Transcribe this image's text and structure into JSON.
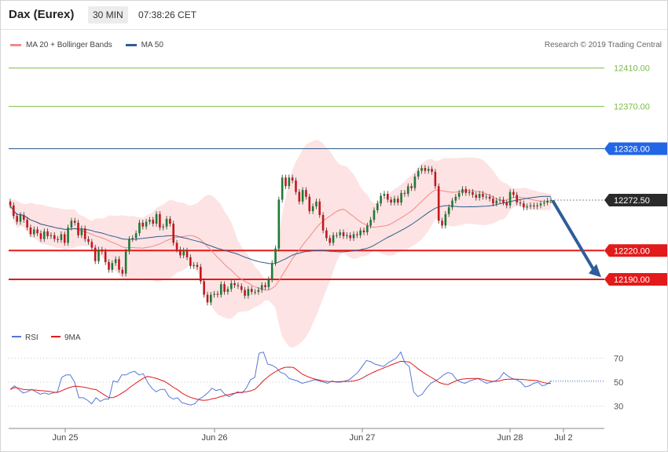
{
  "header": {
    "instrument": "Dax (Eurex)",
    "period": "30 MIN",
    "time": "07:38:26 CET"
  },
  "legend": [
    {
      "label": "MA 20 + Bollinger Bands",
      "color": "#f08a8a"
    },
    {
      "label": "MA 50",
      "color": "#2e5d8f"
    }
  ],
  "credit": "Research © 2019 Trading Central",
  "chart_data": [
    {
      "type": "candlestick",
      "x_ticks": [
        "Jun 25",
        "Jun 26",
        "Jun 27",
        "Jun 28",
        "Jul 2"
      ],
      "ylim": [
        12141,
        12431
      ],
      "price_levels": [
        {
          "value": 12410.0,
          "label": "12410.00",
          "kind": "target",
          "color": "#7dbb45"
        },
        {
          "value": 12370.0,
          "label": "12370.00",
          "kind": "target",
          "color": "#7dbb45"
        },
        {
          "value": 12326.0,
          "label": "12326.00",
          "kind": "pivot",
          "color": "#2f5a86",
          "badge": "#2266e6"
        },
        {
          "value": 12272.5,
          "label": "12272.50",
          "kind": "last",
          "color": "#888888",
          "badge": "#2a2a2a"
        },
        {
          "value": 12220.0,
          "label": "12220.00",
          "kind": "support",
          "color": "#e21a1a",
          "badge": "#e21a1a"
        },
        {
          "value": 12190.0,
          "label": "12190.00",
          "kind": "support",
          "color": "#e21a1a",
          "badge": "#e21a1a"
        }
      ],
      "close": [
        12267,
        12256,
        12250,
        12257,
        12252,
        12244,
        12237,
        12242,
        12238,
        12232,
        12240,
        12235,
        12236,
        12232,
        12231,
        12237,
        12228,
        12244,
        12251,
        12249,
        12236,
        12243,
        12232,
        12229,
        12223,
        12209,
        12221,
        12219,
        12208,
        12200,
        12207,
        12211,
        12200,
        12196,
        12219,
        12232,
        12233,
        12238,
        12249,
        12245,
        12250,
        12252,
        12248,
        12258,
        12244,
        12245,
        12253,
        12248,
        12228,
        12221,
        12215,
        12220,
        12213,
        12204,
        12205,
        12203,
        12188,
        12174,
        12166,
        12174,
        12175,
        12174,
        12185,
        12177,
        12180,
        12186,
        12184,
        12183,
        12179,
        12173,
        12180,
        12177,
        12177,
        12179,
        12184,
        12182,
        12190,
        12207,
        12222,
        12273,
        12296,
        12287,
        12296,
        12293,
        12281,
        12271,
        12283,
        12276,
        12261,
        12266,
        12271,
        12257,
        12241,
        12233,
        12228,
        12236,
        12236,
        12239,
        12235,
        12236,
        12233,
        12237,
        12236,
        12241,
        12239,
        12246,
        12252,
        12262,
        12269,
        12277,
        12279,
        12273,
        12270,
        12274,
        12270,
        12280,
        12279,
        12287,
        12285,
        12297,
        12303,
        12306,
        12303,
        12305,
        12302,
        12287,
        12251,
        12246,
        12258,
        12265,
        12272,
        12276,
        12280,
        12284,
        12280,
        12281,
        12278,
        12275,
        12279,
        12276,
        12276,
        12274,
        12269,
        12272,
        12273,
        12270,
        12267,
        12281,
        12278,
        12270,
        12269,
        12265,
        12266,
        12267,
        12266,
        12267,
        12269,
        12270,
        12272,
        12272.5
      ],
      "rsi": [
        44,
        47,
        44,
        41,
        42,
        44,
        42,
        40,
        41,
        40,
        41,
        42,
        54,
        56,
        56,
        50,
        37,
        37,
        35,
        32,
        37,
        34,
        36,
        36,
        51,
        50,
        56,
        56,
        58,
        59,
        56,
        57,
        50,
        45,
        42,
        44,
        44,
        38,
        36,
        37,
        33,
        32,
        31,
        32,
        36,
        38,
        41,
        45,
        43,
        44,
        40,
        38,
        40,
        42,
        41,
        45,
        52,
        54,
        74,
        75,
        65,
        64,
        62,
        58,
        57,
        53,
        52,
        51,
        49,
        50,
        51,
        52,
        51,
        50,
        49,
        51,
        50,
        50,
        51,
        52,
        55,
        58,
        63,
        68,
        67,
        65,
        64,
        63,
        66,
        68,
        70,
        75,
        66,
        63,
        42,
        38,
        40,
        45,
        49,
        51,
        53,
        56,
        58,
        57,
        52,
        50,
        49,
        51,
        52,
        53,
        51,
        49,
        50,
        51,
        53,
        58,
        55,
        53,
        52,
        50,
        46,
        47,
        49,
        50,
        47,
        48,
        51
      ]
    }
  ]
}
